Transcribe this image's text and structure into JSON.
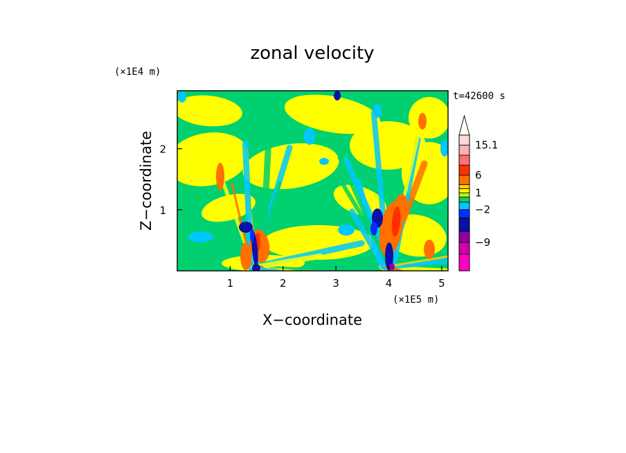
{
  "chart_data": {
    "type": "heatmap",
    "title": "zonal velocity",
    "xlabel": "X−coordinate",
    "ylabel": "Z−coordinate",
    "x_unit": "(×1E5 m)",
    "y_unit": "(×1E4 m)",
    "time_label": "t=42600 s",
    "xlim": [
      0,
      5.12
    ],
    "ylim": [
      0,
      2.95
    ],
    "x_ticks": [
      1,
      2,
      3,
      4,
      5
    ],
    "x_tick_labels": [
      "1",
      "2",
      "3",
      "4",
      "5"
    ],
    "y_ticks": [
      1,
      2
    ],
    "y_tick_labels": [
      "1",
      "2"
    ],
    "colorbar": {
      "levels_bottom_to_top": [
        "<-15",
        "-12",
        "-9",
        "-6",
        "-4",
        "-2",
        "-1",
        "0",
        "1",
        "2",
        "4",
        "6",
        "8",
        "10",
        "15.1",
        ">15.1"
      ],
      "colors_bottom_to_top": [
        "#ff00c0",
        "#d000b0",
        "#9000a0",
        "#0a10a8",
        "#0030ff",
        "#00c8ff",
        "#00d070",
        "#b8ff00",
        "#ffff00",
        "#ffd000",
        "#ff7000",
        "#ff3000",
        "#ff7070",
        "#ffb0b0",
        "#ffd8d8",
        "#ffffff"
      ],
      "labeled_values": [
        {
          "value": 15.1,
          "text": "15.1"
        },
        {
          "value": 6,
          "text": "6"
        },
        {
          "value": 1,
          "text": "1"
        },
        {
          "value": -2,
          "text": "−2"
        },
        {
          "value": -9,
          "text": "−9"
        }
      ]
    },
    "grid": false,
    "background_field": "#00d070"
  }
}
